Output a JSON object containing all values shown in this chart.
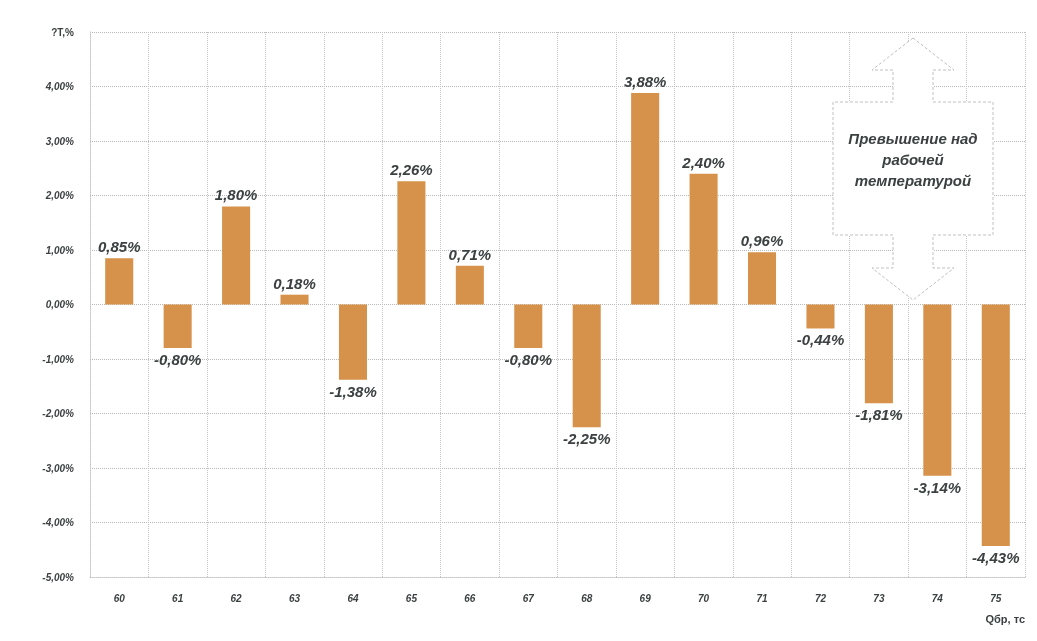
{
  "chart_data": {
    "type": "bar",
    "ylabel": "?T,%",
    "xlabel": "Qбр, тс",
    "categories": [
      "60",
      "61",
      "62",
      "63",
      "64",
      "65",
      "66",
      "67",
      "68",
      "69",
      "70",
      "71",
      "72",
      "73",
      "74",
      "75"
    ],
    "values": [
      0.85,
      -0.8,
      1.8,
      0.18,
      -1.38,
      2.26,
      0.71,
      -0.8,
      -2.25,
      3.88,
      2.4,
      0.96,
      -0.44,
      -1.81,
      -3.14,
      -4.43
    ],
    "value_labels": [
      "0,85%",
      "-0,80%",
      "1,80%",
      "0,18%",
      "-1,38%",
      "2,26%",
      "0,71%",
      "-0,80%",
      "-2,25%",
      "3,88%",
      "2,40%",
      "0,96%",
      "-0,44%",
      "-1,81%",
      "-3,14%",
      "-4,43%"
    ],
    "color": "#d6924a",
    "ylim": [
      -5,
      5
    ],
    "yticks": [
      {
        "value": -5,
        "label": "-5,00%"
      },
      {
        "value": -4,
        "label": "-4,00%"
      },
      {
        "value": -3,
        "label": "-3,00%"
      },
      {
        "value": -2,
        "label": "-2,00%"
      },
      {
        "value": -1,
        "label": "-1,00%"
      },
      {
        "value": 0,
        "label": "0,00%"
      },
      {
        "value": 1,
        "label": "1,00%"
      },
      {
        "value": 2,
        "label": "2,00%"
      },
      {
        "value": 3,
        "label": "3,00%"
      },
      {
        "value": 4,
        "label": "4,00%"
      },
      {
        "value": 5,
        "label": null
      }
    ],
    "grid": true,
    "annotations": [
      "Превышение над рабочей температурой"
    ]
  }
}
